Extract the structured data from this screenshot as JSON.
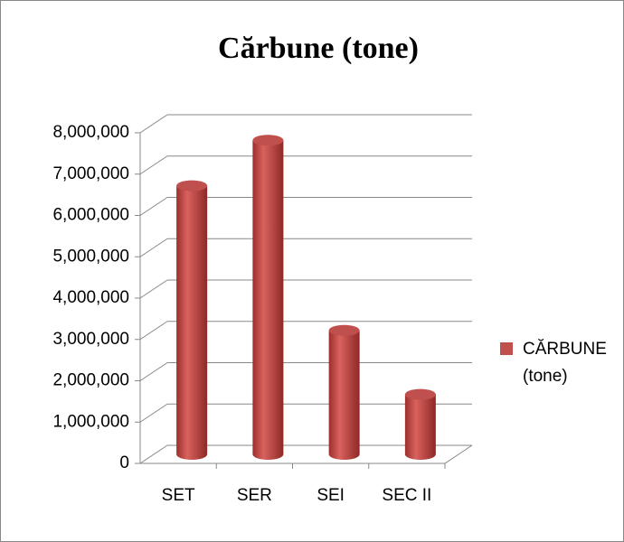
{
  "chart_data": {
    "type": "bar3d",
    "title": "Cărbune (tone)",
    "categories": [
      "SET",
      "SER",
      "SEI",
      "SEC II"
    ],
    "series": [
      {
        "name": "CĂRBUNE (tone)",
        "color": "#c0504d",
        "values": [
          6500000,
          7600000,
          3000000,
          1450000
        ]
      }
    ],
    "ylim": [
      0,
      8000000
    ],
    "yticks": [
      0,
      {
        "value": 1000000,
        "label": "1,000,000"
      },
      {
        "value": 2000000,
        "label": "2,000,000"
      },
      {
        "value": 3000000,
        "label": "3,000,000"
      },
      {
        "value": 4000000,
        "label": "4,000,000"
      },
      {
        "value": 5000000,
        "label": "5,000,000"
      },
      {
        "value": 6000000,
        "label": "6,000,000"
      },
      {
        "value": 7000000,
        "label": "7,000,000"
      },
      {
        "value": 8000000,
        "label": "8,000,000"
      }
    ],
    "grid": true,
    "legend": "right"
  }
}
